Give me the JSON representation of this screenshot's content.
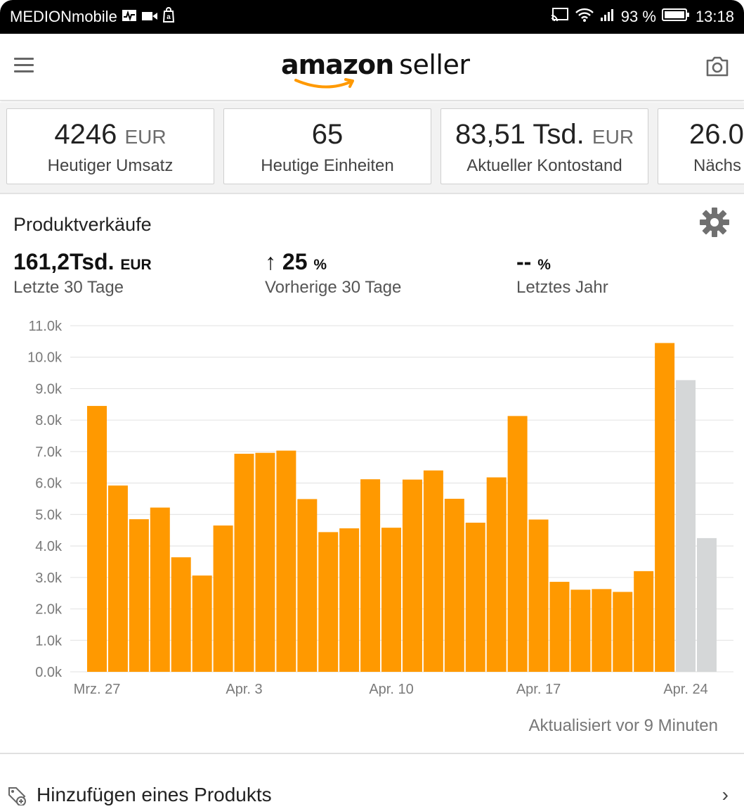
{
  "status_bar": {
    "carrier": "MEDIONmobile",
    "battery": "93 %",
    "time": "13:18"
  },
  "app_bar": {
    "logo_word1": "amazon",
    "logo_word2": "seller"
  },
  "kpi_cards": [
    {
      "value": "4246",
      "unit": "EUR",
      "label": "Heutiger Umsatz"
    },
    {
      "value": "65",
      "unit": "",
      "label": "Heutige Einheiten"
    },
    {
      "value": "83,51 Tsd.",
      "unit": "EUR",
      "label": "Aktueller Kontostand"
    },
    {
      "value": "26.0",
      "unit": "",
      "label": "Nächs"
    }
  ],
  "sales_panel": {
    "title": "Produktverkäufe",
    "metrics": [
      {
        "value": "161,2Tsd.",
        "unit": "EUR",
        "label": "Letzte 30 Tage"
      },
      {
        "arrow": "↑",
        "value": "25",
        "unit": "%",
        "label": "Vorherige 30 Tage"
      },
      {
        "value": "--",
        "unit": "%",
        "label": "Letztes Jahr"
      }
    ],
    "updated_text": "Aktualisiert vor 9 Minuten"
  },
  "chart_data": {
    "type": "bar",
    "title": "",
    "xlabel": "",
    "ylabel": "",
    "ylim": [
      0,
      11000
    ],
    "y_ticks": [
      "0.0k",
      "1.0k",
      "2.0k",
      "3.0k",
      "4.0k",
      "5.0k",
      "6.0k",
      "7.0k",
      "8.0k",
      "9.0k",
      "10.0k",
      "11.0k"
    ],
    "x_tick_labels": [
      {
        "label": "Mrz. 27",
        "index": 0
      },
      {
        "label": "Apr. 3",
        "index": 7
      },
      {
        "label": "Apr. 10",
        "index": 14
      },
      {
        "label": "Apr. 17",
        "index": 21
      },
      {
        "label": "Apr. 24",
        "index": 28
      }
    ],
    "colors": {
      "bar": "#ff9900",
      "projected": "#d5d7d8",
      "grid": "#e6e6e6"
    },
    "series": [
      {
        "values": [
          8450,
          5920,
          4850,
          5220,
          3640,
          3060,
          4650,
          6930,
          6960,
          7030,
          5490,
          4440,
          4560,
          6120,
          4580,
          6110,
          6400,
          5500,
          4740,
          6180,
          8130,
          4840,
          2860,
          2610,
          2630,
          2540,
          3200,
          10450
        ]
      },
      {
        "values": [
          null,
          null,
          null,
          null,
          null,
          null,
          null,
          null,
          null,
          null,
          null,
          null,
          null,
          null,
          null,
          null,
          null,
          null,
          null,
          null,
          null,
          null,
          null,
          null,
          null,
          null,
          null,
          null,
          9270,
          4250
        ]
      }
    ]
  },
  "bottom_list": {
    "item_label": "Hinzufügen eines Produkts"
  }
}
